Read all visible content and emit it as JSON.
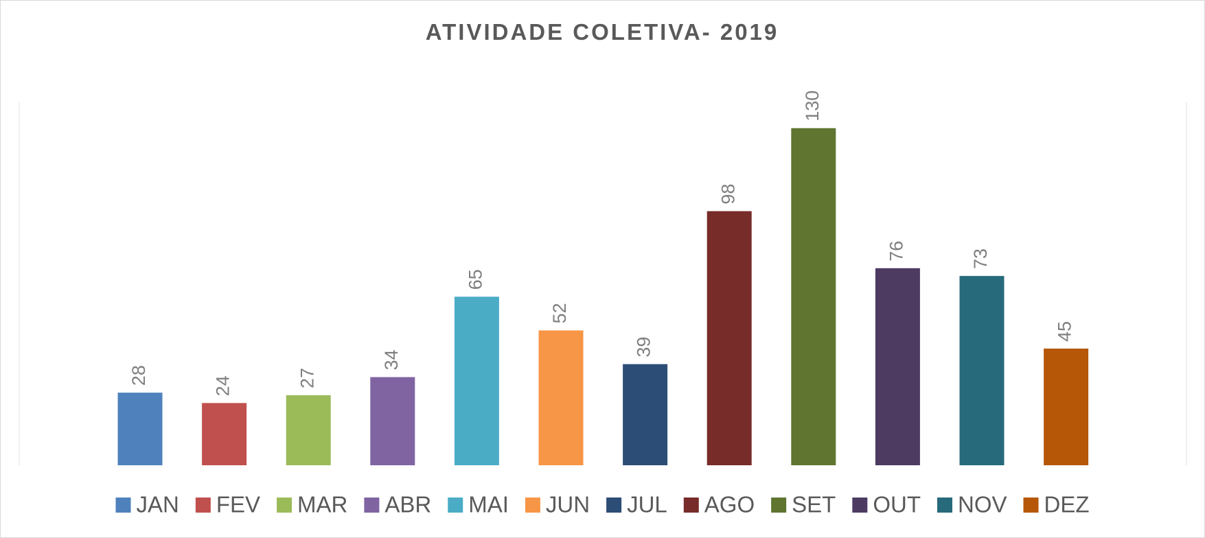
{
  "chart_data": {
    "type": "bar",
    "title": "ATIVIDADE COLETIVA- 2019",
    "categories": [
      "JAN",
      "FEV",
      "MAR",
      "ABR",
      "MAI",
      "JUN",
      "JUL",
      "AGO",
      "SET",
      "OUT",
      "NOV",
      "DEZ"
    ],
    "values": [
      28,
      24,
      27,
      34,
      65,
      52,
      39,
      98,
      130,
      76,
      73,
      45
    ],
    "colors": [
      "#4f81bd",
      "#c0504d",
      "#9bbb59",
      "#8064a2",
      "#4bacc6",
      "#f79646",
      "#2c4d75",
      "#772c2a",
      "#5f7530",
      "#4d3b62",
      "#276a7c",
      "#b65708"
    ],
    "ylim": [
      0,
      140
    ],
    "legend": "bottom"
  }
}
